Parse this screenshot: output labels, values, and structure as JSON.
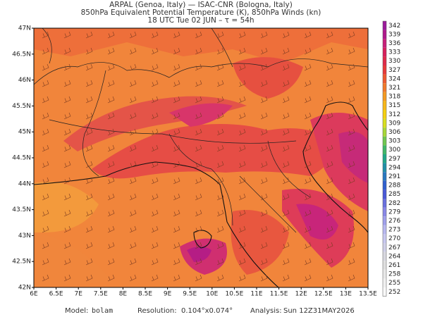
{
  "header": {
    "lines": [
      "ARPAL (Genoa, Italy)  —  ISAC-CNR (Bologna, Italy)",
      "850hPa Equivalent Potential Temperature (K), 850hPa Winds (kn)",
      "18 UTC Tue 02 JUN  –  τ = 54h"
    ]
  },
  "map": {
    "lon_labels": [
      "6E",
      "6.5E",
      "7E",
      "7.5E",
      "8E",
      "8.5E",
      "9E",
      "9.5E",
      "10E",
      "10.5E",
      "11E",
      "11.5E",
      "12E",
      "12.5E",
      "13E",
      "13.5E"
    ],
    "lat_labels": [
      "47N",
      "46.5N",
      "46N",
      "45.5N",
      "45N",
      "44.5N",
      "44N",
      "43.5N",
      "43N",
      "42.5N",
      "42N"
    ]
  },
  "colorbar": {
    "labels": [
      "342",
      "339",
      "336",
      "333",
      "330",
      "327",
      "324",
      "321",
      "318",
      "315",
      "312",
      "309",
      "306",
      "303",
      "300",
      "297",
      "294",
      "291",
      "288",
      "285",
      "282",
      "279",
      "276",
      "273",
      "270",
      "267",
      "264",
      "261",
      "258",
      "255",
      "252"
    ]
  },
  "footer": {
    "model_label": "Model:",
    "model": "bolam",
    "resolution_label": "Resolution:",
    "resolution": "0.104°x0.074°",
    "analysis_label": "Analysis:",
    "analysis": "Sun 12Z31MAY2026"
  }
}
